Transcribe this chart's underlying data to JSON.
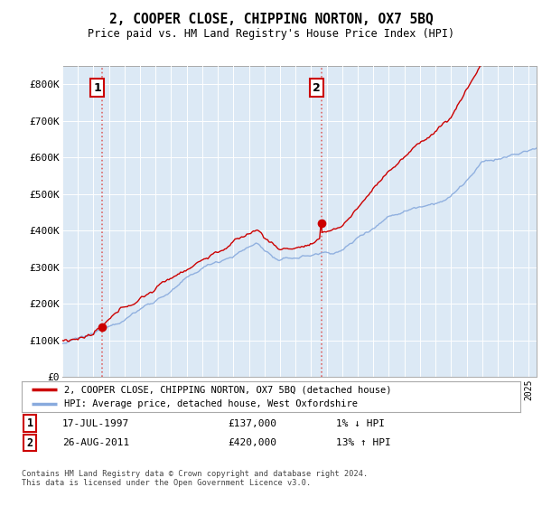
{
  "title": "2, COOPER CLOSE, CHIPPING NORTON, OX7 5BQ",
  "subtitle": "Price paid vs. HM Land Registry's House Price Index (HPI)",
  "ylim": [
    0,
    850000
  ],
  "yticks": [
    0,
    100000,
    200000,
    300000,
    400000,
    500000,
    600000,
    700000,
    800000
  ],
  "ytick_labels": [
    "£0",
    "£100K",
    "£200K",
    "£300K",
    "£400K",
    "£500K",
    "£600K",
    "£700K",
    "£800K"
  ],
  "xlim_start": 1995.0,
  "xlim_end": 2025.5,
  "legend_line1": "2, COOPER CLOSE, CHIPPING NORTON, OX7 5BQ (detached house)",
  "legend_line2": "HPI: Average price, detached house, West Oxfordshire",
  "sale1_date": 1997.54,
  "sale1_price": 137000,
  "sale1_label": "1",
  "sale1_text": "17-JUL-1997",
  "sale1_price_text": "£137,000",
  "sale1_hpi_text": "1% ↓ HPI",
  "sale2_date": 2011.65,
  "sale2_price": 420000,
  "sale2_label": "2",
  "sale2_text": "26-AUG-2011",
  "sale2_price_text": "£420,000",
  "sale2_hpi_text": "13% ↑ HPI",
  "bg_color": "#dce9f5",
  "grid_color": "#ffffff",
  "line_color_red": "#cc0000",
  "line_color_blue": "#88aadd",
  "sale_marker_color": "#cc0000",
  "vline_color": "#dd6666",
  "footnote": "Contains HM Land Registry data © Crown copyright and database right 2024.\nThis data is licensed under the Open Government Licence v3.0."
}
